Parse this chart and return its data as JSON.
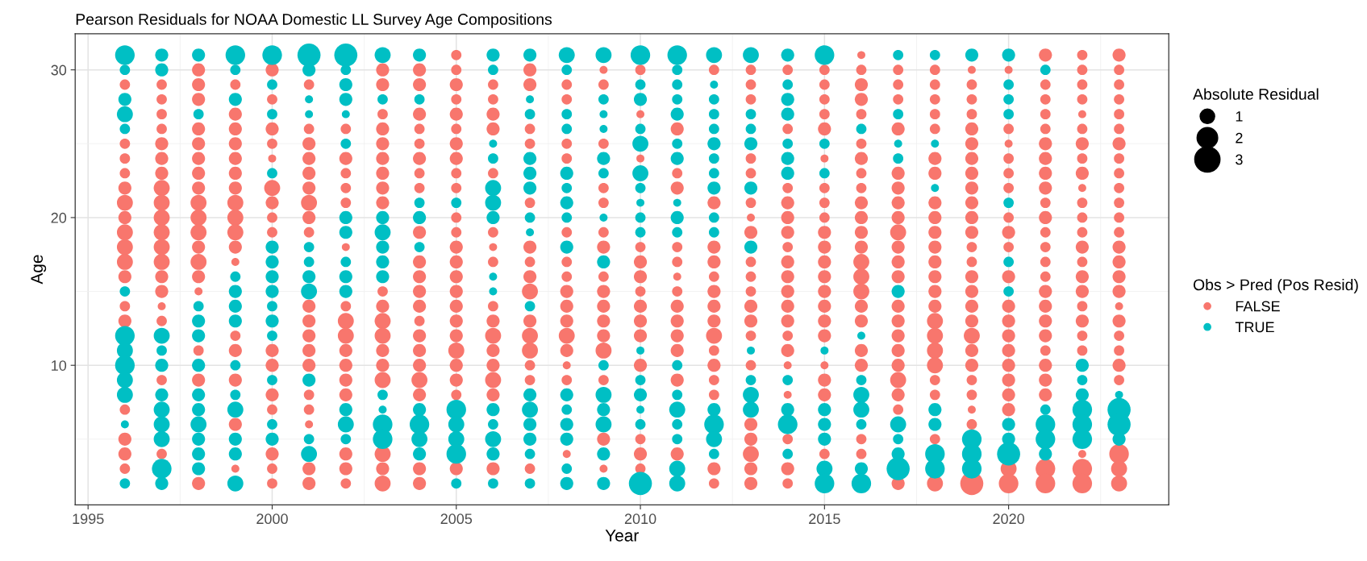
{
  "chart_data": {
    "type": "bubble",
    "title": "Pearson Residuals for NOAA Domestic LL Survey Age Compositions",
    "xlabel": "Year",
    "ylabel": "Age",
    "legend_title": [
      "Absolute Residual",
      "Obs > Pred (Pos Resid)"
    ],
    "size_legend": [
      1,
      2,
      3
    ],
    "xlim": [
      1994.65,
      2024.35
    ],
    "xticks": [
      1995,
      2000,
      2005,
      2010,
      2015,
      2020
    ],
    "ylim": [
      0.55,
      32.45
    ],
    "yticks": [
      10,
      20,
      30
    ],
    "grid": true,
    "legend": "right",
    "marker": "circle",
    "series": [
      {
        "name": "FALSE",
        "color": "#f8766d",
        "x": [
          1996,
          1996,
          1996,
          1996,
          1996,
          1996,
          1996,
          1996,
          1996,
          1996,
          1996,
          1996,
          1996,
          1996,
          1996,
          1996,
          1996,
          1997,
          1997,
          1997,
          1997,
          1997,
          1997,
          1997,
          1997,
          1997,
          1997,
          1997,
          1997,
          1997,
          1997,
          1997,
          1997,
          1997,
          1997,
          1997,
          1998,
          1998,
          1998,
          1998,
          1998,
          1998,
          1998,
          1998,
          1998,
          1998,
          1998,
          1998,
          1998,
          1998,
          1998,
          1998,
          1998,
          1998,
          1999,
          1999,
          1999,
          1999,
          1999,
          1999,
          1999,
          1999,
          1999,
          1999,
          1999,
          1999,
          1999,
          1999,
          1999,
          1999,
          1999,
          2000,
          2000,
          2000,
          2000,
          2000,
          2000,
          2000,
          2000,
          2000,
          2000,
          2000,
          2000,
          2000,
          2000,
          2000,
          2000,
          2001,
          2001,
          2001,
          2001,
          2001,
          2001,
          2001,
          2001,
          2001,
          2001,
          2001,
          2001,
          2001,
          2001,
          2001,
          2001,
          2001,
          2001,
          2001,
          2002,
          2002,
          2002,
          2002,
          2002,
          2002,
          2002,
          2002,
          2002,
          2002,
          2002,
          2002,
          2002,
          2002,
          2002,
          2002,
          2003,
          2003,
          2003,
          2003,
          2003,
          2003,
          2003,
          2003,
          2003,
          2003,
          2003,
          2003,
          2003,
          2003,
          2003,
          2003,
          2003,
          2003,
          2003,
          2004,
          2004,
          2004,
          2004,
          2004,
          2004,
          2004,
          2004,
          2004,
          2004,
          2004,
          2004,
          2004,
          2004,
          2004,
          2004,
          2004,
          2004,
          2004,
          2004,
          2004,
          2005,
          2005,
          2005,
          2005,
          2005,
          2005,
          2005,
          2005,
          2005,
          2005,
          2005,
          2005,
          2005,
          2005,
          2005,
          2005,
          2005,
          2005,
          2005,
          2005,
          2005,
          2005,
          2005,
          2005,
          2006,
          2006,
          2006,
          2006,
          2006,
          2006,
          2006,
          2006,
          2006,
          2006,
          2006,
          2006,
          2006,
          2006,
          2006,
          2006,
          2007,
          2007,
          2007,
          2007,
          2007,
          2007,
          2007,
          2007,
          2007,
          2007,
          2007,
          2007,
          2007,
          2007,
          2007,
          2008,
          2008,
          2008,
          2008,
          2008,
          2008,
          2008,
          2008,
          2008,
          2008,
          2008,
          2008,
          2008,
          2008,
          2008,
          2009,
          2009,
          2009,
          2009,
          2009,
          2009,
          2009,
          2009,
          2009,
          2009,
          2009,
          2009,
          2009,
          2009,
          2009,
          2009,
          2010,
          2010,
          2010,
          2010,
          2010,
          2010,
          2010,
          2010,
          2010,
          2010,
          2010,
          2010,
          2010,
          2010,
          2011,
          2011,
          2011,
          2011,
          2011,
          2011,
          2011,
          2011,
          2011,
          2011,
          2011,
          2011,
          2011,
          2012,
          2012,
          2012,
          2012,
          2012,
          2012,
          2012,
          2012,
          2012,
          2012,
          2012,
          2012,
          2012,
          2012,
          2012,
          2013,
          2013,
          2013,
          2013,
          2013,
          2013,
          2013,
          2013,
          2013,
          2013,
          2013,
          2013,
          2013,
          2013,
          2013,
          2013,
          2013,
          2013,
          2013,
          2013,
          2014,
          2014,
          2014,
          2014,
          2014,
          2014,
          2014,
          2014,
          2014,
          2014,
          2014,
          2014,
          2014,
          2014,
          2014,
          2014,
          2014,
          2014,
          2014,
          2015,
          2015,
          2015,
          2015,
          2015,
          2015,
          2015,
          2015,
          2015,
          2015,
          2015,
          2015,
          2015,
          2015,
          2015,
          2015,
          2015,
          2015,
          2015,
          2015,
          2015,
          2016,
          2016,
          2016,
          2016,
          2016,
          2016,
          2016,
          2016,
          2016,
          2016,
          2016,
          2016,
          2016,
          2016,
          2016,
          2016,
          2016,
          2016,
          2016,
          2016,
          2016,
          2016,
          2017,
          2017,
          2017,
          2017,
          2017,
          2017,
          2017,
          2017,
          2017,
          2017,
          2017,
          2017,
          2017,
          2017,
          2017,
          2017,
          2017,
          2017,
          2017,
          2017,
          2017,
          2018,
          2018,
          2018,
          2018,
          2018,
          2018,
          2018,
          2018,
          2018,
          2018,
          2018,
          2018,
          2018,
          2018,
          2018,
          2018,
          2018,
          2018,
          2018,
          2018,
          2018,
          2018,
          2018,
          2019,
          2019,
          2019,
          2019,
          2019,
          2019,
          2019,
          2019,
          2019,
          2019,
          2019,
          2019,
          2019,
          2019,
          2019,
          2019,
          2019,
          2019,
          2019,
          2019,
          2019,
          2019,
          2019,
          2019,
          2019,
          2019,
          2020,
          2020,
          2020,
          2020,
          2020,
          2020,
          2020,
          2020,
          2020,
          2020,
          2020,
          2020,
          2020,
          2020,
          2020,
          2020,
          2020,
          2020,
          2020,
          2020,
          2021,
          2021,
          2021,
          2021,
          2021,
          2021,
          2021,
          2021,
          2021,
          2021,
          2021,
          2021,
          2021,
          2021,
          2021,
          2021,
          2021,
          2021,
          2021,
          2021,
          2021,
          2021,
          2021,
          2021,
          2021,
          2022,
          2022,
          2022,
          2022,
          2022,
          2022,
          2022,
          2022,
          2022,
          2022,
          2022,
          2022,
          2022,
          2022,
          2022,
          2022,
          2022,
          2022,
          2022,
          2022,
          2022,
          2022,
          2022,
          2022,
          2023,
          2023,
          2023,
          2023,
          2023,
          2023,
          2023,
          2023,
          2023,
          2023,
          2023,
          2023,
          2023,
          2023,
          2023,
          2023,
          2023,
          2023,
          2023,
          2023,
          2023,
          2023,
          2023,
          2023,
          2023,
          2023
        ],
        "values": [
          29,
          25,
          24,
          23,
          22,
          21,
          20,
          19,
          18,
          17,
          16,
          14,
          13,
          7,
          5,
          4,
          3,
          29,
          28,
          27,
          26,
          25,
          24,
          23,
          22,
          21,
          20,
          19,
          18,
          17,
          16,
          15,
          14,
          13,
          9,
          4,
          30,
          29,
          28,
          26,
          25,
          24,
          23,
          22,
          21,
          20,
          19,
          18,
          17,
          16,
          15,
          11,
          9,
          2,
          29,
          27,
          26,
          25,
          24,
          23,
          22,
          21,
          20,
          19,
          18,
          17,
          12,
          11,
          9,
          6,
          3,
          30,
          28,
          26,
          25,
          24,
          22,
          21,
          20,
          19,
          11,
          10,
          8,
          7,
          4,
          3,
          2,
          29,
          26,
          25,
          24,
          23,
          22,
          21,
          20,
          19,
          14,
          13,
          12,
          11,
          10,
          8,
          7,
          6,
          3,
          2,
          26,
          24,
          23,
          22,
          21,
          18,
          14,
          13,
          12,
          11,
          10,
          9,
          8,
          4,
          3,
          2,
          30,
          29,
          27,
          26,
          25,
          24,
          23,
          22,
          21,
          15,
          14,
          13,
          12,
          11,
          10,
          9,
          4,
          3,
          2,
          30,
          29,
          27,
          26,
          25,
          24,
          23,
          22,
          19,
          17,
          16,
          15,
          14,
          13,
          12,
          11,
          10,
          9,
          8,
          3,
          2,
          31,
          30,
          29,
          28,
          27,
          26,
          25,
          24,
          23,
          22,
          20,
          19,
          18,
          17,
          16,
          15,
          14,
          13,
          12,
          11,
          10,
          9,
          8,
          3,
          29,
          28,
          27,
          26,
          23,
          19,
          18,
          17,
          14,
          13,
          12,
          11,
          10,
          9,
          8,
          3,
          30,
          29,
          26,
          25,
          21,
          18,
          17,
          16,
          15,
          13,
          12,
          11,
          10,
          9,
          3,
          29,
          28,
          25,
          24,
          19,
          17,
          16,
          15,
          14,
          13,
          12,
          11,
          10,
          9,
          4,
          30,
          29,
          25,
          22,
          21,
          19,
          18,
          16,
          15,
          14,
          13,
          12,
          11,
          9,
          5,
          3,
          30,
          27,
          24,
          18,
          17,
          16,
          15,
          14,
          13,
          12,
          10,
          5,
          4,
          3,
          26,
          23,
          22,
          18,
          17,
          16,
          15,
          14,
          13,
          12,
          11,
          9,
          4,
          30,
          21,
          18,
          17,
          16,
          15,
          14,
          13,
          12,
          11,
          10,
          9,
          8,
          3,
          2,
          30,
          29,
          28,
          24,
          23,
          21,
          20,
          19,
          17,
          16,
          15,
          14,
          13,
          12,
          10,
          6,
          5,
          4,
          3,
          2,
          30,
          26,
          22,
          21,
          20,
          19,
          18,
          17,
          16,
          15,
          14,
          13,
          12,
          11,
          10,
          8,
          5,
          3,
          2,
          30,
          29,
          28,
          27,
          26,
          24,
          22,
          21,
          20,
          19,
          18,
          17,
          16,
          15,
          14,
          13,
          12,
          10,
          9,
          8,
          4,
          31,
          30,
          29,
          28,
          27,
          25,
          24,
          23,
          22,
          21,
          20,
          19,
          18,
          17,
          16,
          15,
          14,
          13,
          11,
          10,
          5,
          4,
          30,
          29,
          28,
          26,
          23,
          22,
          21,
          20,
          19,
          18,
          17,
          16,
          14,
          13,
          12,
          11,
          10,
          9,
          8,
          7,
          2,
          30,
          29,
          28,
          27,
          26,
          24,
          23,
          21,
          20,
          19,
          18,
          17,
          16,
          15,
          14,
          13,
          12,
          11,
          10,
          9,
          8,
          5,
          2,
          30,
          29,
          28,
          27,
          26,
          25,
          24,
          23,
          22,
          21,
          20,
          19,
          18,
          17,
          16,
          15,
          14,
          13,
          12,
          11,
          10,
          9,
          8,
          7,
          6,
          2,
          30,
          26,
          25,
          24,
          23,
          22,
          20,
          19,
          18,
          16,
          14,
          13,
          12,
          11,
          10,
          9,
          8,
          7,
          3,
          2,
          31,
          29,
          28,
          27,
          26,
          25,
          24,
          23,
          22,
          21,
          20,
          19,
          18,
          17,
          16,
          15,
          14,
          13,
          12,
          11,
          10,
          9,
          8,
          3,
          2,
          31,
          30,
          29,
          28,
          27,
          26,
          25,
          24,
          23,
          22,
          21,
          20,
          19,
          18,
          17,
          16,
          15,
          14,
          13,
          12,
          11,
          4,
          3,
          2,
          31,
          30,
          29,
          28,
          27,
          26,
          25,
          24,
          23,
          22,
          21,
          20,
          19,
          18,
          17,
          16,
          15,
          14,
          13,
          12,
          11,
          10,
          9,
          4,
          3,
          2
        ],
        "sizes": [
          0.5,
          0.5,
          0.5,
          0.5,
          0.8,
          1.2,
          0.8,
          1.2,
          1.2,
          1.2,
          0.8,
          0.5,
          0.8,
          0.5,
          0.8,
          0.8,
          0.5,
          0.5,
          0.5,
          0.5,
          0.5,
          0.8,
          0.8,
          0.8,
          1.2,
          1.2,
          1.2,
          1.2,
          1.2,
          1.2,
          0.8,
          0.8,
          0.3,
          0.5,
          0.5,
          0.5,
          0.8,
          0.8,
          0.8,
          0.8,
          0.8,
          0.8,
          0.8,
          0.8,
          1.2,
          1.2,
          1.2,
          0.8,
          1.2,
          0.8,
          0.3,
          0.5,
          0.8,
          0.8,
          0.5,
          0.8,
          0.8,
          0.8,
          0.8,
          0.8,
          0.8,
          1.2,
          1.2,
          1.2,
          0.8,
          0.3,
          0.5,
          0.8,
          0.8,
          0.8,
          0.3,
          0.8,
          0.5,
          0.8,
          0.5,
          0.3,
          1.2,
          0.8,
          0.5,
          0.5,
          0.8,
          0.8,
          0.8,
          0.5,
          0.8,
          0.5,
          0.5,
          0.5,
          0.5,
          0.8,
          0.8,
          0.8,
          0.8,
          1.2,
          0.8,
          0.5,
          0.8,
          0.8,
          0.8,
          0.8,
          0.8,
          0.5,
          0.5,
          0.3,
          0.8,
          0.8,
          0.5,
          0.8,
          0.5,
          0.5,
          0.5,
          0.3,
          0.5,
          1.2,
          1.2,
          0.8,
          0.8,
          0.8,
          0.8,
          0.8,
          0.8,
          0.5,
          0.8,
          0.8,
          0.5,
          0.8,
          0.8,
          0.8,
          0.8,
          0.8,
          0.8,
          0.5,
          0.8,
          1.2,
          1.2,
          0.8,
          0.8,
          1.2,
          1.2,
          0.8,
          1.2,
          0.8,
          0.8,
          0.8,
          0.5,
          0.5,
          0.8,
          0.5,
          0.5,
          0.8,
          0.8,
          0.8,
          0.8,
          0.8,
          0.5,
          0.8,
          0.8,
          0.8,
          1.2,
          0.8,
          0.8,
          0.8,
          0.5,
          0.5,
          0.8,
          0.5,
          0.8,
          0.5,
          0.8,
          0.8,
          0.5,
          0.5,
          0.5,
          0.5,
          0.8,
          0.8,
          0.8,
          0.8,
          0.8,
          0.8,
          0.8,
          1.2,
          0.8,
          0.8,
          0.5,
          0.8,
          0.5,
          0.5,
          0.8,
          0.8,
          0.5,
          0.5,
          0.3,
          0.5,
          0.5,
          0.8,
          1.2,
          0.8,
          0.8,
          1.2,
          0.8,
          0.8,
          0.8,
          0.8,
          0.5,
          0.5,
          0.5,
          0.8,
          0.5,
          0.8,
          1.2,
          0.8,
          1.2,
          1.2,
          0.5,
          0.5,
          0.5,
          0.5,
          0.5,
          0.5,
          0.5,
          0.5,
          0.5,
          0.5,
          0.8,
          0.8,
          0.8,
          1.2,
          0.8,
          0.3,
          0.5,
          0.3,
          0.3,
          0.5,
          0.5,
          0.5,
          0.5,
          0.5,
          0.8,
          0.5,
          0.8,
          0.8,
          0.8,
          0.8,
          1.2,
          0.5,
          0.8,
          0.3,
          0.5,
          0.3,
          0.3,
          0.5,
          0.8,
          0.8,
          0.5,
          0.8,
          0.8,
          0.8,
          0.8,
          0.5,
          0.8,
          0.5,
          0.8,
          0.5,
          0.8,
          0.5,
          0.5,
          0.3,
          0.5,
          0.8,
          0.8,
          0.8,
          0.8,
          0.8,
          0.8,
          0.5,
          0.8,
          0.8,
          0.8,
          0.5,
          0.8,
          0.8,
          0.8,
          1.2,
          0.5,
          0.8,
          0.5,
          0.5,
          0.8,
          0.5,
          0.5,
          0.5,
          0.5,
          0.5,
          0.5,
          0.5,
          0.3,
          0.8,
          0.5,
          0.5,
          0.5,
          0.8,
          0.8,
          0.5,
          0.5,
          0.8,
          0.8,
          1.2,
          0.8,
          0.8,
          0.5,
          0.5,
          0.5,
          0.8,
          0.8,
          0.8,
          0.5,
          0.8,
          0.8,
          0.8,
          0.8,
          0.8,
          0.5,
          0.8,
          0.3,
          0.3,
          0.5,
          0.8,
          0.5,
          0.5,
          0.5,
          0.5,
          0.5,
          0.8,
          0.3,
          0.5,
          0.5,
          0.5,
          0.8,
          0.8,
          0.8,
          0.8,
          0.8,
          0.8,
          0.8,
          0.8,
          0.3,
          0.8,
          0.8,
          0.5,
          0.3,
          0.5,
          0.8,
          0.8,
          0.5,
          0.5,
          0.8,
          0.5,
          0.5,
          0.8,
          0.8,
          0.8,
          0.8,
          1.2,
          1.2,
          1.2,
          0.8,
          0.8,
          0.8,
          0.8,
          0.5,
          0.5,
          0.5,
          0.5,
          0.5,
          0.8,
          0.8,
          0.8,
          0.8,
          0.8,
          1.2,
          0.8,
          0.8,
          0.8,
          0.8,
          0.8,
          0.8,
          0.8,
          0.8,
          1.2,
          0.8,
          0.5,
          0.8,
          0.5,
          0.5,
          0.5,
          0.5,
          0.5,
          0.8,
          0.8,
          0.8,
          0.8,
          0.8,
          0.8,
          0.8,
          0.8,
          0.8,
          0.8,
          1.2,
          1.2,
          1.2,
          1.2,
          0.5,
          0.5,
          0.5,
          1.2,
          0.3,
          0.5,
          0.5,
          0.5,
          0.8,
          0.8,
          0.8,
          0.8,
          0.8,
          0.8,
          0.8,
          0.8,
          0.5,
          0.5,
          0.8,
          0.8,
          0.8,
          0.8,
          1.2,
          0.8,
          0.8,
          0.5,
          0.5,
          0.3,
          0.5,
          2.5,
          0.3,
          0.5,
          0.3,
          0.5,
          0.5,
          0.5,
          0.5,
          0.8,
          0.5,
          0.8,
          0.8,
          0.8,
          0.8,
          0.8,
          0.8,
          0.8,
          0.8,
          0.8,
          1.2,
          1.8,
          0.8,
          0.5,
          0.5,
          0.5,
          0.5,
          0.8,
          0.8,
          0.8,
          0.8,
          0.5,
          0.8,
          0.5,
          0.5,
          0.5,
          0.5,
          0.8,
          0.8,
          0.8,
          0.8,
          0.5,
          0.8,
          0.8,
          0.8,
          1.8,
          1.8,
          0.5,
          0.5,
          0.5,
          0.5,
          0.3,
          0.5,
          0.8,
          0.5,
          0.8,
          0.3,
          0.5,
          0.5,
          0.5,
          0.8,
          0.5,
          0.8,
          0.8,
          0.5,
          0.8,
          0.5,
          0.5,
          0.3,
          1.8,
          1.8,
          0.8,
          0.5,
          0.5,
          0.5,
          0.5,
          0.5,
          0.8,
          0.5,
          0.5,
          0.5,
          0.5,
          0.5,
          0.5,
          0.8,
          0.8,
          0.8,
          0.8,
          0.3,
          0.8,
          0.5,
          0.5,
          0.8,
          0.5,
          1.8,
          1.2,
          1.2
        ]
      },
      {
        "name": "TRUE",
        "color": "#00bfc4",
        "x": [
          1996,
          1996,
          1996,
          1996,
          1996,
          1996,
          1996,
          1996,
          1996,
          1996,
          1996,
          1996,
          1996,
          1997,
          1997,
          1997,
          1997,
          1997,
          1997,
          1997,
          1997,
          1997,
          1997,
          1997,
          1998,
          1998,
          1998,
          1998,
          1998,
          1998,
          1998,
          1998,
          1998,
          1998,
          1998,
          1998,
          1999,
          1999,
          1999,
          1999,
          1999,
          1999,
          1999,
          1999,
          1999,
          1999,
          1999,
          1999,
          1999,
          2000,
          2000,
          2000,
          2000,
          2000,
          2000,
          2000,
          2000,
          2000,
          2000,
          2000,
          2000,
          2000,
          2000,
          2001,
          2001,
          2001,
          2001,
          2001,
          2001,
          2001,
          2001,
          2001,
          2001,
          2001,
          2002,
          2002,
          2002,
          2002,
          2002,
          2002,
          2002,
          2002,
          2002,
          2002,
          2002,
          2002,
          2002,
          2002,
          2003,
          2003,
          2003,
          2003,
          2003,
          2003,
          2003,
          2003,
          2003,
          2003,
          2003,
          2004,
          2004,
          2004,
          2004,
          2004,
          2004,
          2004,
          2004,
          2004,
          2005,
          2005,
          2005,
          2005,
          2005,
          2005,
          2006,
          2006,
          2006,
          2006,
          2006,
          2006,
          2006,
          2006,
          2006,
          2006,
          2006,
          2006,
          2006,
          2006,
          2007,
          2007,
          2007,
          2007,
          2007,
          2007,
          2007,
          2007,
          2007,
          2007,
          2007,
          2007,
          2007,
          2007,
          2007,
          2008,
          2008,
          2008,
          2008,
          2008,
          2008,
          2008,
          2008,
          2008,
          2008,
          2008,
          2008,
          2008,
          2008,
          2008,
          2009,
          2009,
          2009,
          2009,
          2009,
          2009,
          2009,
          2009,
          2009,
          2009,
          2009,
          2009,
          2009,
          2009,
          2010,
          2010,
          2010,
          2010,
          2010,
          2010,
          2010,
          2010,
          2010,
          2010,
          2010,
          2010,
          2010,
          2010,
          2010,
          2010,
          2011,
          2011,
          2011,
          2011,
          2011,
          2011,
          2011,
          2011,
          2011,
          2011,
          2011,
          2011,
          2011,
          2011,
          2011,
          2011,
          2011,
          2012,
          2012,
          2012,
          2012,
          2012,
          2012,
          2012,
          2012,
          2012,
          2012,
          2012,
          2012,
          2012,
          2012,
          2012,
          2013,
          2013,
          2013,
          2013,
          2013,
          2013,
          2013,
          2013,
          2013,
          2013,
          2014,
          2014,
          2014,
          2014,
          2014,
          2014,
          2014,
          2014,
          2014,
          2014,
          2014,
          2015,
          2015,
          2015,
          2015,
          2015,
          2015,
          2015,
          2015,
          2015,
          2016,
          2016,
          2016,
          2016,
          2016,
          2016,
          2016,
          2016,
          2017,
          2017,
          2017,
          2017,
          2017,
          2017,
          2017,
          2017,
          2017,
          2018,
          2018,
          2018,
          2018,
          2018,
          2018,
          2018,
          2019,
          2019,
          2019,
          2019,
          2020,
          2020,
          2020,
          2020,
          2020,
          2020,
          2020,
          2020,
          2020,
          2020,
          2021,
          2021,
          2021,
          2021,
          2021,
          2022,
          2022,
          2022,
          2022,
          2022,
          2022,
          2023,
          2023,
          2023,
          2023
        ],
        "values": [
          31,
          30,
          28,
          27,
          26,
          15,
          12,
          11,
          10,
          9,
          8,
          6,
          2,
          31,
          30,
          12,
          11,
          10,
          8,
          7,
          6,
          5,
          3,
          2,
          31,
          27,
          14,
          13,
          12,
          10,
          8,
          7,
          6,
          5,
          4,
          3,
          31,
          30,
          28,
          16,
          15,
          14,
          13,
          10,
          8,
          7,
          5,
          4,
          2,
          31,
          29,
          27,
          23,
          18,
          17,
          16,
          15,
          14,
          13,
          12,
          9,
          6,
          5,
          31,
          30,
          28,
          27,
          18,
          17,
          16,
          15,
          9,
          5,
          4,
          31,
          30,
          29,
          28,
          27,
          25,
          20,
          19,
          17,
          16,
          15,
          7,
          6,
          5,
          31,
          28,
          20,
          19,
          18,
          17,
          16,
          8,
          7,
          6,
          5,
          31,
          28,
          21,
          20,
          18,
          7,
          6,
          5,
          4,
          21,
          7,
          6,
          5,
          4,
          2,
          31,
          30,
          25,
          24,
          22,
          21,
          20,
          16,
          15,
          7,
          6,
          5,
          4,
          2,
          31,
          28,
          27,
          24,
          23,
          22,
          20,
          19,
          14,
          8,
          7,
          6,
          5,
          4,
          2,
          31,
          30,
          27,
          26,
          23,
          22,
          21,
          20,
          18,
          8,
          7,
          6,
          5,
          3,
          2,
          31,
          28,
          27,
          26,
          24,
          23,
          20,
          17,
          10,
          8,
          7,
          6,
          4,
          2,
          31,
          29,
          28,
          26,
          25,
          23,
          22,
          21,
          20,
          19,
          11,
          9,
          8,
          7,
          6,
          2,
          31,
          30,
          29,
          28,
          27,
          25,
          24,
          21,
          20,
          19,
          10,
          8,
          7,
          6,
          5,
          3,
          2,
          31,
          29,
          28,
          27,
          26,
          25,
          24,
          23,
          22,
          20,
          19,
          7,
          6,
          5,
          4,
          31,
          27,
          26,
          25,
          22,
          18,
          11,
          9,
          8,
          7,
          31,
          29,
          28,
          27,
          25,
          24,
          23,
          9,
          7,
          6,
          4,
          31,
          25,
          23,
          11,
          7,
          6,
          5,
          3,
          2,
          26,
          12,
          9,
          8,
          7,
          6,
          3,
          2,
          31,
          27,
          25,
          24,
          15,
          6,
          5,
          4,
          3,
          31,
          25,
          22,
          7,
          6,
          4,
          3,
          31,
          5,
          4,
          3,
          31,
          29,
          28,
          27,
          21,
          17,
          15,
          6,
          5,
          4,
          30,
          7,
          6,
          5,
          4,
          10,
          9,
          8,
          7,
          6,
          5,
          8,
          7,
          6,
          5
        ],
        "sizes": [
          1.8,
          0.5,
          0.8,
          1.2,
          0.5,
          0.5,
          1.8,
          1.2,
          1.8,
          1.2,
          1.2,
          0.3,
          0.5,
          0.8,
          0.8,
          1.2,
          0.5,
          0.8,
          0.8,
          1.2,
          1.2,
          1.2,
          1.8,
          0.8,
          0.8,
          0.5,
          0.5,
          0.8,
          0.8,
          0.8,
          0.8,
          0.8,
          1.2,
          0.8,
          0.8,
          0.8,
          1.8,
          0.5,
          0.8,
          0.5,
          0.8,
          0.8,
          0.8,
          0.5,
          0.5,
          1.2,
          0.8,
          0.8,
          1.2,
          1.8,
          0.5,
          0.5,
          0.5,
          0.8,
          0.8,
          0.8,
          0.8,
          0.5,
          0.8,
          0.5,
          0.5,
          0.5,
          0.8,
          2.5,
          0.8,
          0.3,
          0.3,
          0.5,
          0.5,
          0.8,
          1.2,
          0.8,
          0.5,
          1.2,
          2.5,
          0.5,
          0.8,
          0.8,
          0.3,
          0.5,
          0.8,
          0.8,
          0.5,
          0.8,
          0.8,
          0.8,
          1.2,
          0.5,
          1.2,
          0.5,
          0.8,
          1.2,
          0.8,
          0.8,
          0.8,
          0.5,
          0.3,
          1.8,
          1.8,
          0.8,
          0.5,
          0.5,
          0.8,
          0.5,
          0.8,
          1.8,
          1.2,
          0.8,
          0.5,
          1.8,
          1.2,
          1.2,
          1.8,
          0.5,
          0.8,
          0.5,
          0.3,
          0.5,
          1.2,
          1.2,
          0.8,
          0.3,
          0.3,
          0.8,
          0.5,
          1.2,
          0.8,
          0.5,
          0.8,
          0.3,
          0.5,
          0.8,
          0.8,
          0.8,
          0.5,
          0.3,
          0.5,
          0.8,
          1.2,
          0.8,
          0.8,
          0.5,
          0.5,
          1.2,
          0.5,
          0.5,
          0.5,
          0.8,
          0.5,
          0.8,
          0.5,
          0.8,
          0.8,
          0.5,
          0.8,
          0.8,
          0.5,
          0.8,
          1.2,
          0.5,
          0.3,
          0.3,
          0.8,
          0.5,
          0.3,
          0.8,
          0.5,
          1.2,
          0.8,
          1.2,
          0.8,
          0.8,
          1.8,
          0.5,
          0.8,
          0.5,
          1.2,
          1.2,
          0.5,
          0.3,
          0.5,
          0.5,
          0.3,
          0.5,
          0.8,
          0.3,
          0.5,
          2.5,
          1.8,
          0.5,
          0.5,
          0.5,
          0.8,
          0.5,
          0.8,
          0.3,
          0.8,
          0.5,
          0.5,
          0.5,
          1.2,
          0.5,
          0.5,
          1.2,
          1.2,
          1.2,
          0.3,
          0.5,
          0.5,
          0.5,
          0.8,
          0.5,
          0.5,
          0.8,
          0.5,
          0.5,
          0.8,
          1.8,
          1.2,
          0.5,
          1.2,
          0.5,
          0.5,
          0.8,
          0.8,
          0.8,
          0.3,
          0.5,
          1.2,
          1.2,
          0.8,
          0.5,
          0.8,
          0.8,
          0.5,
          0.8,
          0.8,
          0.5,
          0.8,
          1.8,
          0.5,
          1.8,
          0.5,
          0.5,
          0.3,
          0.8,
          0.8,
          0.8,
          1.2,
          1.8,
          0.5,
          0.3,
          0.5,
          1.2,
          1.2,
          0.5,
          0.8,
          1.8,
          0.5,
          0.5,
          0.3,
          0.5,
          0.8,
          1.2,
          0.5,
          0.8,
          2.5,
          0.5,
          0.3,
          0.3,
          0.8,
          0.8,
          1.8,
          1.8,
          0.8,
          1.8,
          1.8,
          1.8,
          0.8,
          0.5,
          0.5,
          0.5,
          0.5,
          0.5,
          0.5,
          0.8,
          0.8,
          2.5,
          0.5,
          0.5,
          1.8,
          1.8,
          0.8,
          0.8,
          0.5,
          0.8,
          1.8,
          1.8,
          1.8,
          0.3,
          2.5,
          2.5,
          0.8
        ]
      }
    ]
  }
}
